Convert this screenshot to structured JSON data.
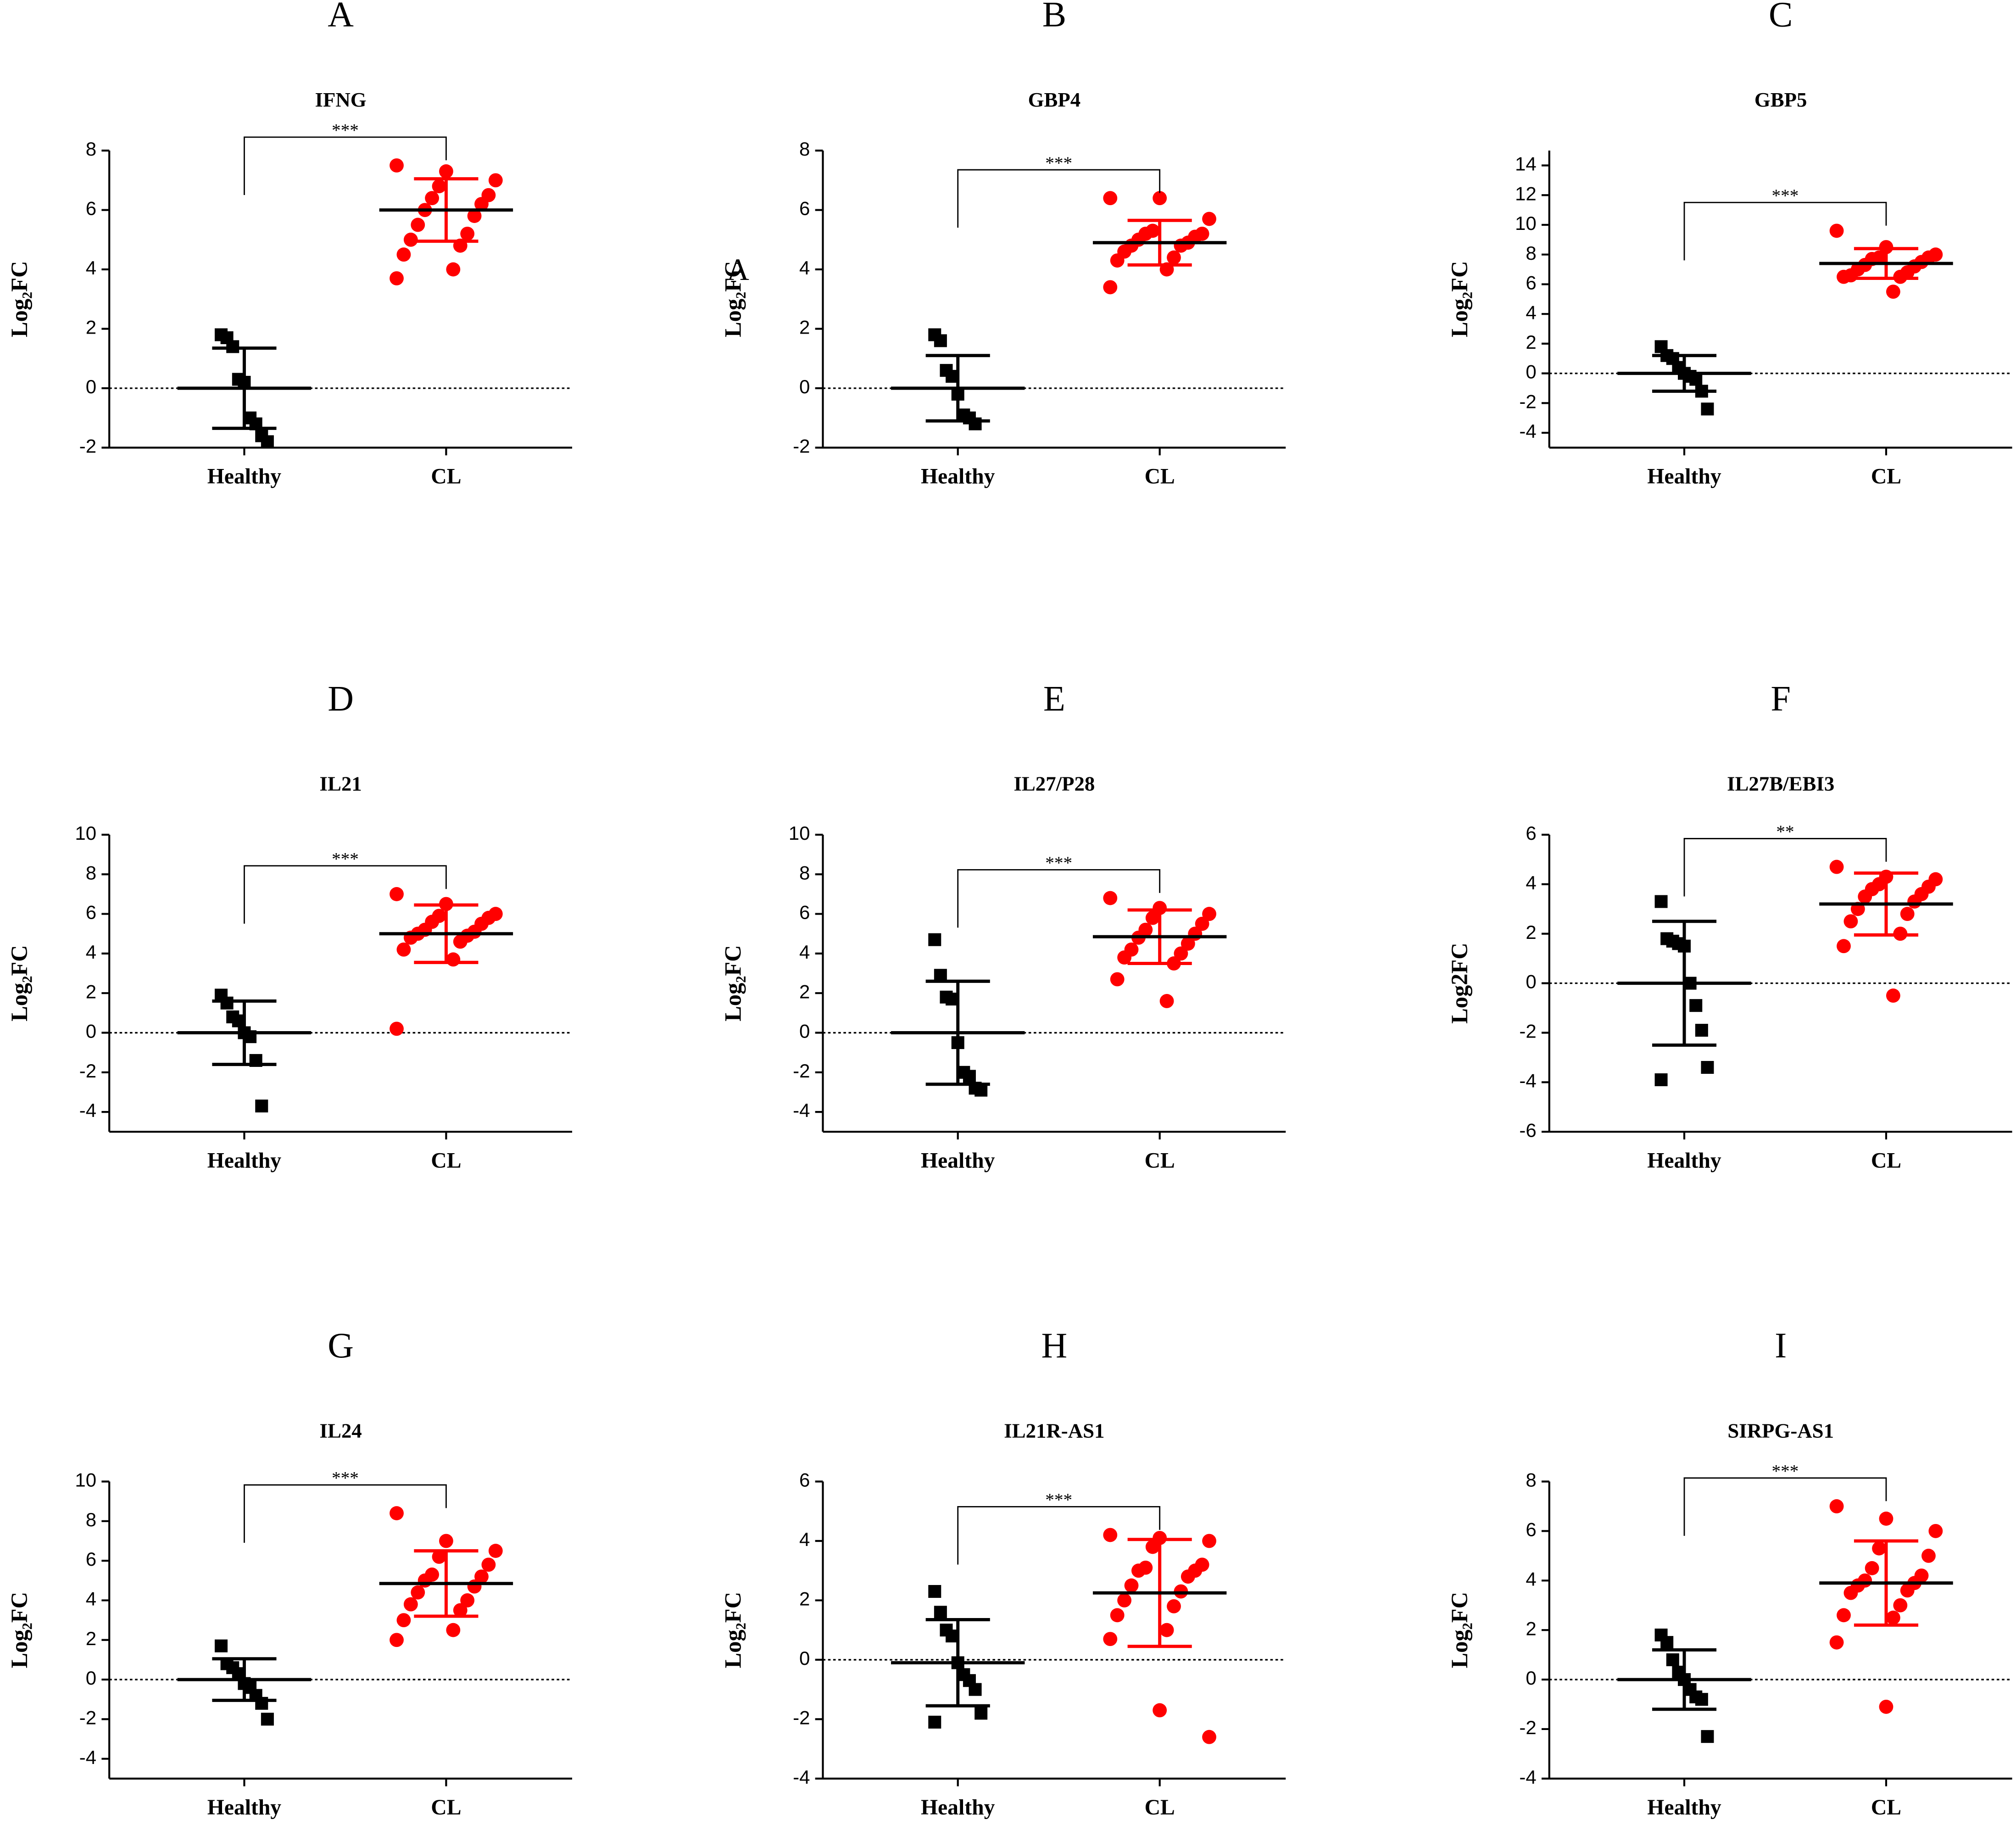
{
  "chart_data": [
    {
      "type": "scatter",
      "panel": "A",
      "title": "IFNG",
      "ylabel": "Log₂FC",
      "categories": [
        "Healthy",
        "CL"
      ],
      "significance": "***",
      "ylim": [
        -2,
        8
      ],
      "yticks": [
        -2,
        0,
        2,
        4,
        6,
        8
      ],
      "series": [
        {
          "color": "#000000",
          "marker": "square",
          "values": [
            1.8,
            1.7,
            1.4,
            0.3,
            0.2,
            -1.0,
            -1.2,
            -1.6,
            -1.8
          ],
          "mean": 0,
          "sd": 1.35
        },
        {
          "color": "#ff0000",
          "marker": "circle",
          "values": [
            7.5,
            7.3,
            7.0,
            6.8,
            6.5,
            6.4,
            6.2,
            6.0,
            5.8,
            5.5,
            5.2,
            5.0,
            4.8,
            4.5,
            4.0,
            3.7
          ],
          "mean": 6.0,
          "sd": 1.05
        }
      ]
    },
    {
      "type": "scatter",
      "panel": "B",
      "title": "GBP4",
      "ylabel": "Log₂FC",
      "annotation": "A",
      "categories": [
        "Healthy",
        "CL"
      ],
      "significance": "***",
      "ylim": [
        -2,
        8
      ],
      "yticks": [
        -2,
        0,
        2,
        4,
        6,
        8
      ],
      "series": [
        {
          "color": "#000000",
          "marker": "square",
          "values": [
            1.8,
            1.6,
            0.6,
            0.4,
            -0.2,
            -0.9,
            -1.0,
            -1.2
          ],
          "mean": 0,
          "sd": 1.1
        },
        {
          "color": "#ff0000",
          "marker": "circle",
          "values": [
            6.4,
            6.4,
            5.7,
            5.3,
            5.2,
            5.2,
            5.1,
            5.0,
            4.9,
            4.8,
            4.8,
            4.6,
            4.4,
            4.3,
            4.0,
            3.4
          ],
          "mean": 4.9,
          "sd": 0.75
        }
      ]
    },
    {
      "type": "scatter",
      "panel": "C",
      "title": "GBP5",
      "ylabel": "Log₂FC",
      "categories": [
        "Healthy",
        "CL"
      ],
      "significance": "***",
      "ylim": [
        -5,
        15
      ],
      "yticks": [
        -4,
        -2,
        0,
        2,
        4,
        6,
        8,
        10,
        12,
        14
      ],
      "series": [
        {
          "color": "#000000",
          "marker": "square",
          "values": [
            1.8,
            1.2,
            1.0,
            0.4,
            0.0,
            -0.2,
            -0.4,
            -1.2,
            -2.4
          ],
          "mean": 0,
          "sd": 1.2
        },
        {
          "color": "#ff0000",
          "marker": "circle",
          "values": [
            9.6,
            8.5,
            8.0,
            7.8,
            7.8,
            7.7,
            7.5,
            7.3,
            7.2,
            7.0,
            6.8,
            6.6,
            6.5,
            6.5,
            5.5
          ],
          "mean": 7.4,
          "sd": 1.0
        }
      ]
    },
    {
      "type": "scatter",
      "panel": "D",
      "title": "IL21",
      "ylabel": "Log₂FC",
      "categories": [
        "Healthy",
        "CL"
      ],
      "significance": "***",
      "ylim": [
        -5,
        10
      ],
      "yticks": [
        -4,
        -2,
        0,
        2,
        4,
        6,
        8,
        10
      ],
      "series": [
        {
          "color": "#000000",
          "marker": "square",
          "values": [
            1.9,
            1.5,
            0.8,
            0.6,
            0.0,
            -0.2,
            -1.4,
            -3.7
          ],
          "mean": 0,
          "sd": 1.6
        },
        {
          "color": "#ff0000",
          "marker": "circle",
          "values": [
            7.0,
            6.5,
            6.0,
            5.9,
            5.8,
            5.6,
            5.5,
            5.2,
            5.1,
            5.0,
            4.9,
            4.8,
            4.6,
            4.2,
            3.7,
            0.2
          ],
          "mean": 5.0,
          "sd": 1.45
        }
      ]
    },
    {
      "type": "scatter",
      "panel": "E",
      "title": "IL27/P28",
      "ylabel": "Log₂FC",
      "categories": [
        "Healthy",
        "CL"
      ],
      "significance": "***",
      "ylim": [
        -5,
        10
      ],
      "yticks": [
        -4,
        -2,
        0,
        2,
        4,
        6,
        8,
        10
      ],
      "series": [
        {
          "color": "#000000",
          "marker": "square",
          "values": [
            4.7,
            2.9,
            1.8,
            1.7,
            -0.5,
            -2.0,
            -2.2,
            -2.8,
            -2.9
          ],
          "mean": 0,
          "sd": 2.6
        },
        {
          "color": "#ff0000",
          "marker": "circle",
          "values": [
            6.8,
            6.3,
            6.0,
            5.8,
            5.5,
            5.2,
            5.0,
            4.8,
            4.5,
            4.2,
            4.0,
            3.8,
            3.5,
            2.7,
            1.6
          ],
          "mean": 4.85,
          "sd": 1.35
        }
      ]
    },
    {
      "type": "scatter",
      "panel": "F",
      "title": "IL27B/EBI3",
      "ylabel": "Log2FC",
      "categories": [
        "Healthy",
        "CL"
      ],
      "significance": "**",
      "ylim": [
        -6,
        6
      ],
      "yticks": [
        -6,
        -4,
        -2,
        0,
        2,
        4,
        6
      ],
      "series": [
        {
          "color": "#000000",
          "marker": "square",
          "values": [
            3.3,
            1.8,
            1.7,
            1.6,
            1.5,
            0.0,
            -0.9,
            -1.9,
            -3.4,
            -3.9
          ],
          "mean": 0,
          "sd": 2.5
        },
        {
          "color": "#ff0000",
          "marker": "circle",
          "values": [
            4.7,
            4.3,
            4.2,
            4.0,
            3.9,
            3.8,
            3.6,
            3.5,
            3.3,
            3.0,
            2.8,
            2.5,
            2.0,
            1.5,
            -0.5
          ],
          "mean": 3.2,
          "sd": 1.25
        }
      ]
    },
    {
      "type": "scatter",
      "panel": "G",
      "title": "IL24",
      "ylabel": "Log₂FC",
      "categories": [
        "Healthy",
        "CL"
      ],
      "significance": "***",
      "ylim": [
        -5,
        10
      ],
      "yticks": [
        -4,
        -2,
        0,
        2,
        4,
        6,
        8,
        10
      ],
      "series": [
        {
          "color": "#000000",
          "marker": "square",
          "values": [
            1.7,
            0.8,
            0.6,
            0.3,
            -0.2,
            -0.4,
            -0.8,
            -1.2,
            -2.0
          ],
          "mean": 0,
          "sd": 1.05
        },
        {
          "color": "#ff0000",
          "marker": "circle",
          "values": [
            8.4,
            7.0,
            6.5,
            6.2,
            5.8,
            5.3,
            5.2,
            5.0,
            4.7,
            4.4,
            4.0,
            3.8,
            3.5,
            3.0,
            2.5,
            2.0
          ],
          "mean": 4.85,
          "sd": 1.65
        }
      ]
    },
    {
      "type": "scatter",
      "panel": "H",
      "title": "IL21R-AS1",
      "ylabel": "Log₂FC",
      "categories": [
        "Healthy",
        "CL"
      ],
      "significance": "***",
      "ylim": [
        -4,
        6
      ],
      "yticks": [
        -4,
        -2,
        0,
        2,
        4,
        6
      ],
      "series": [
        {
          "color": "#000000",
          "marker": "square",
          "values": [
            2.3,
            1.6,
            1.0,
            0.8,
            -0.1,
            -0.5,
            -0.7,
            -1.0,
            -1.8,
            -2.1
          ],
          "mean": -0.1,
          "sd": 1.45
        },
        {
          "color": "#ff0000",
          "marker": "circle",
          "values": [
            4.2,
            4.1,
            4.0,
            3.8,
            3.2,
            3.1,
            3.0,
            3.0,
            2.8,
            2.5,
            2.3,
            2.0,
            1.8,
            1.5,
            1.0,
            0.7,
            -1.7,
            -2.6
          ],
          "mean": 2.25,
          "sd": 1.8
        }
      ]
    },
    {
      "type": "scatter",
      "panel": "I",
      "title": "SIRPG-AS1",
      "ylabel": "Log₂FC",
      "categories": [
        "Healthy",
        "CL"
      ],
      "significance": "***",
      "ylim": [
        -4,
        8
      ],
      "yticks": [
        -4,
        -2,
        0,
        2,
        4,
        6,
        8
      ],
      "series": [
        {
          "color": "#000000",
          "marker": "square",
          "values": [
            1.8,
            1.5,
            0.8,
            0.3,
            0.0,
            -0.4,
            -0.7,
            -0.8,
            -2.3
          ],
          "mean": 0,
          "sd": 1.2
        },
        {
          "color": "#ff0000",
          "marker": "circle",
          "values": [
            7.0,
            6.5,
            6.0,
            5.3,
            5.0,
            4.5,
            4.2,
            4.0,
            3.9,
            3.8,
            3.6,
            3.5,
            3.0,
            2.6,
            2.5,
            1.5,
            -1.1
          ],
          "mean": 3.9,
          "sd": 1.7
        }
      ]
    }
  ]
}
